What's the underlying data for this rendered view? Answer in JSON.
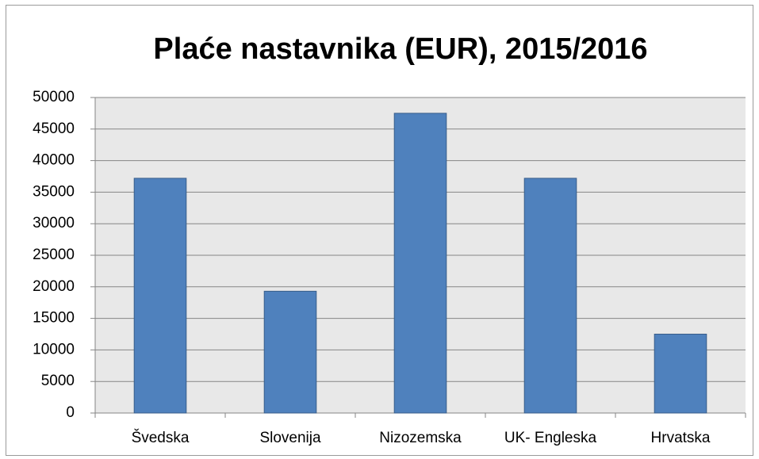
{
  "chart_data": {
    "type": "bar",
    "title": "Plaće nastavnika  (EUR), 2015/2016",
    "categories": [
      "Švedska",
      "Slovenija",
      "Nizozemska",
      "UK- Engleska",
      "Hrvatska"
    ],
    "values": [
      37200,
      19300,
      47500,
      37200,
      12500
    ],
    "color": "#4f81bd",
    "ylim": [
      0,
      50000
    ],
    "yticks": [
      0,
      5000,
      10000,
      15000,
      20000,
      25000,
      30000,
      35000,
      40000,
      45000,
      50000
    ],
    "grid": true
  }
}
